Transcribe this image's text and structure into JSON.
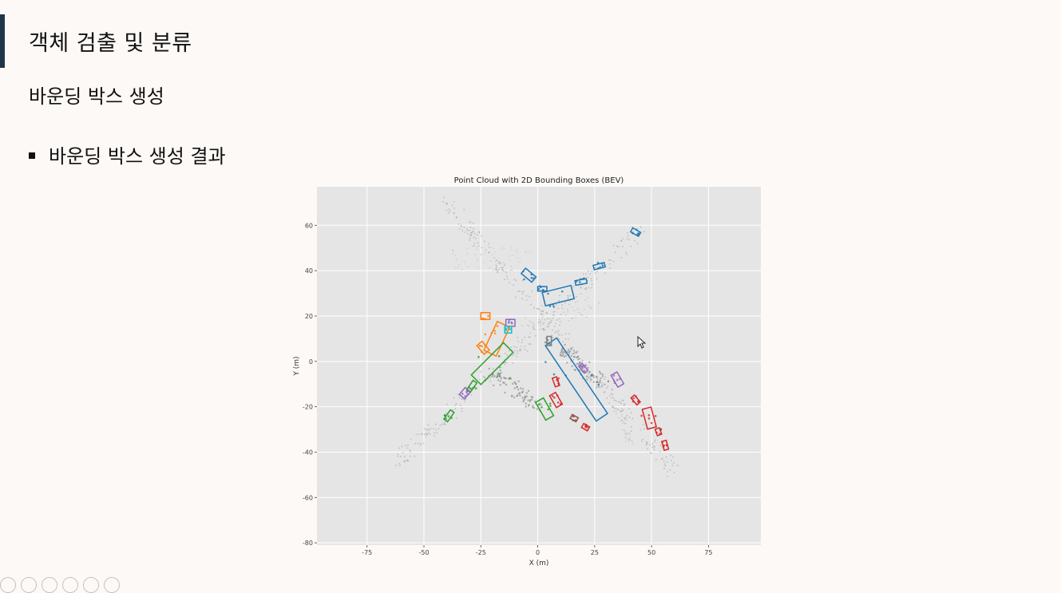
{
  "slide": {
    "title": "객체 검출 및 분류",
    "subtitle": "바운딩 박스 생성",
    "bullet": "바운딩 박스 생성 결과"
  },
  "chart_data": {
    "type": "scatter",
    "title": "Point Cloud with 2D Bounding Boxes (BEV)",
    "xlabel": "X (m)",
    "ylabel": "Y (m)",
    "xlim": [
      -97,
      98
    ],
    "ylim": [
      -81,
      77
    ],
    "xticks": [
      -75,
      -50,
      -25,
      0,
      25,
      50,
      75
    ],
    "yticks": [
      60,
      40,
      20,
      0,
      -20,
      -40,
      -60,
      -80
    ],
    "grid": true,
    "background": "#e5e5e5",
    "boxes": [
      {
        "color": "#1f77b4",
        "cx": 17,
        "cy": -8,
        "len": 40,
        "wid": 6,
        "angle": -56
      },
      {
        "color": "#1f77b4",
        "cx": 9,
        "cy": 29,
        "len": 13,
        "wid": 6,
        "angle": 14
      },
      {
        "color": "#1f77b4",
        "cx": -4,
        "cy": 38,
        "len": 6,
        "wid": 3,
        "angle": -40
      },
      {
        "color": "#1f77b4",
        "cx": 2,
        "cy": 32,
        "len": 4,
        "wid": 2,
        "angle": 0
      },
      {
        "color": "#1f77b4",
        "cx": 19,
        "cy": 35,
        "len": 5,
        "wid": 2,
        "angle": 10
      },
      {
        "color": "#1f77b4",
        "cx": 27,
        "cy": 42,
        "len": 5,
        "wid": 2,
        "angle": 15
      },
      {
        "color": "#1f77b4",
        "cx": 43,
        "cy": 57,
        "len": 4,
        "wid": 2,
        "angle": -30
      },
      {
        "color": "#ff7f0e",
        "cx": -18,
        "cy": 10,
        "len": 14,
        "wid": 6,
        "angle": 65
      },
      {
        "color": "#ff7f0e",
        "cx": -24,
        "cy": 6,
        "len": 5,
        "wid": 3,
        "angle": -50
      },
      {
        "color": "#ff7f0e",
        "cx": -23,
        "cy": 20,
        "len": 4,
        "wid": 3,
        "angle": 0
      },
      {
        "color": "#2ca02c",
        "cx": -20,
        "cy": -1,
        "len": 20,
        "wid": 6,
        "angle": 45
      },
      {
        "color": "#2ca02c",
        "cx": -29,
        "cy": -11,
        "len": 5,
        "wid": 2,
        "angle": 55
      },
      {
        "color": "#2ca02c",
        "cx": -39,
        "cy": -24,
        "len": 5,
        "wid": 2,
        "angle": 55
      },
      {
        "color": "#2ca02c",
        "cx": 3,
        "cy": -21,
        "len": 9,
        "wid": 4,
        "angle": -60
      },
      {
        "color": "#9467bd",
        "cx": -32,
        "cy": -14,
        "len": 4,
        "wid": 3,
        "angle": 50
      },
      {
        "color": "#9467bd",
        "cx": 35,
        "cy": -8,
        "len": 6,
        "wid": 3,
        "angle": -60
      },
      {
        "color": "#9467bd",
        "cx": 20,
        "cy": -3,
        "len": 4,
        "wid": 2,
        "angle": -50
      },
      {
        "color": "#9467bd",
        "cx": -12,
        "cy": 17,
        "len": 4,
        "wid": 3,
        "angle": 0
      },
      {
        "color": "#d62728",
        "cx": 49,
        "cy": -25,
        "len": 9,
        "wid": 4,
        "angle": -75
      },
      {
        "color": "#d62728",
        "cx": 43,
        "cy": -17,
        "len": 4,
        "wid": 2,
        "angle": -50
      },
      {
        "color": "#d62728",
        "cx": 56,
        "cy": -37,
        "len": 4,
        "wid": 2,
        "angle": -75
      },
      {
        "color": "#d62728",
        "cx": 8,
        "cy": -17,
        "len": 6,
        "wid": 3,
        "angle": -60
      },
      {
        "color": "#d62728",
        "cx": 8,
        "cy": -9,
        "len": 4,
        "wid": 2,
        "angle": -70
      },
      {
        "color": "#d62728",
        "cx": 53,
        "cy": -31,
        "len": 3,
        "wid": 2,
        "angle": -70
      },
      {
        "color": "#d62728",
        "cx": 21,
        "cy": -29,
        "len": 3,
        "wid": 2,
        "angle": -30
      },
      {
        "color": "#17becf",
        "cx": -13,
        "cy": 14,
        "len": 3,
        "wid": 3,
        "angle": 0
      },
      {
        "color": "#7f7f7f",
        "cx": 5,
        "cy": 9,
        "len": 4,
        "wid": 2,
        "angle": 90
      },
      {
        "color": "#8c564b",
        "cx": 16,
        "cy": -25,
        "len": 3,
        "wid": 2,
        "angle": -30
      }
    ]
  }
}
